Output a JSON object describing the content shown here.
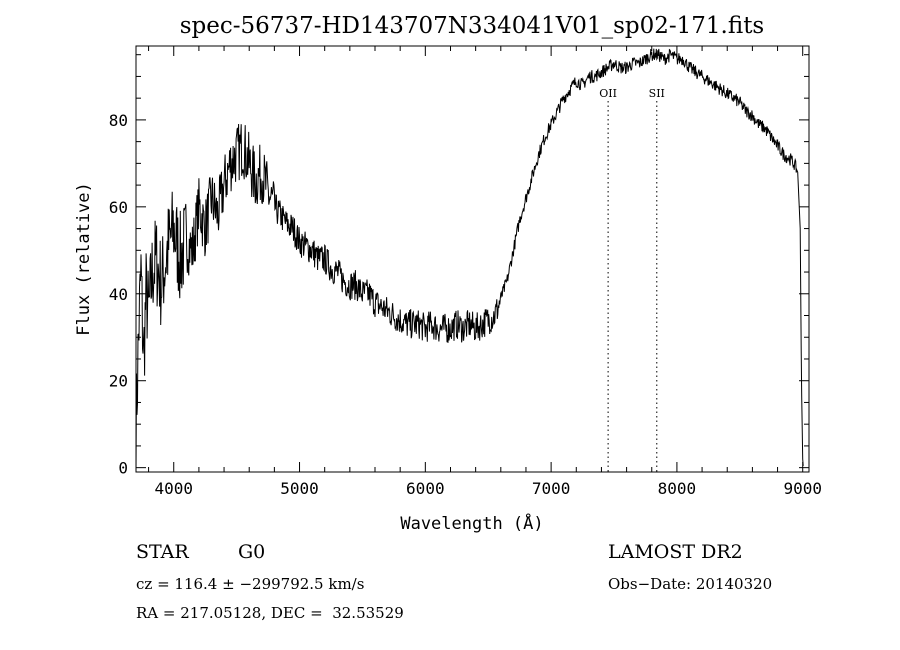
{
  "chart_data": {
    "type": "line",
    "title": "spec-56737-HD143707N334041V01_sp02-171.fits",
    "xlabel": "Wavelength (Å)",
    "ylabel": "Flux (relative)",
    "xlim": [
      3700,
      9050
    ],
    "ylim": [
      -1,
      97
    ],
    "xticks": [
      4000,
      5000,
      6000,
      7000,
      8000,
      9000
    ],
    "yticks": [
      0,
      20,
      40,
      60,
      80
    ],
    "grid": false,
    "series": [
      {
        "x": [
          3700,
          3720,
          3740,
          3760,
          3780,
          3800,
          3830,
          3860,
          3900,
          3950,
          4000,
          4050,
          4100,
          4150,
          4200,
          4250,
          4300,
          4350,
          4400,
          4450,
          4500,
          4550,
          4600,
          4650,
          4700,
          4750,
          4800,
          4850,
          4900,
          4950,
          5000,
          5050,
          5100,
          5150,
          5200,
          5250,
          5300,
          5350,
          5400,
          5450,
          5500,
          5550,
          5600,
          5650,
          5700,
          5750,
          5800,
          5850,
          5900,
          5950,
          6000,
          6050,
          6100,
          6150,
          6200,
          6250,
          6300,
          6350,
          6400,
          6450,
          6500,
          6550,
          6580,
          6600,
          6650,
          6700,
          6750,
          6800,
          6850,
          6900,
          6950,
          7000,
          7050,
          7100,
          7150,
          7200,
          7250,
          7300,
          7350,
          7400,
          7450,
          7500,
          7550,
          7600,
          7650,
          7700,
          7750,
          7800,
          7850,
          7900,
          7950,
          8000,
          8050,
          8100,
          8150,
          8200,
          8250,
          8300,
          8350,
          8400,
          8450,
          8500,
          8550,
          8600,
          8650,
          8700,
          8750,
          8800,
          8850,
          8900,
          8930,
          8960,
          8980,
          8990,
          9000,
          9005
        ],
        "y": [
          8,
          30,
          45,
          25,
          40,
          35,
          45,
          48,
          42,
          50,
          55,
          48,
          52,
          50,
          60,
          55,
          62,
          58,
          65,
          70,
          72,
          74,
          70,
          66,
          68,
          63,
          60,
          58,
          56,
          55,
          52,
          51,
          50,
          48,
          48,
          46,
          45,
          43,
          42,
          42,
          40,
          40,
          38,
          37,
          36,
          35,
          34,
          33,
          33,
          33,
          32,
          33,
          32,
          32,
          32,
          33,
          32,
          33,
          32,
          33,
          34,
          35,
          37,
          39,
          43,
          50,
          57,
          62,
          67,
          72,
          76,
          79,
          82,
          85,
          87,
          89,
          88,
          90,
          90,
          91,
          92,
          93,
          92,
          92,
          93,
          93,
          94,
          95,
          95,
          94,
          95,
          94,
          94,
          92,
          91,
          90,
          89,
          88,
          87,
          86,
          85,
          84,
          82,
          81,
          79,
          78,
          76,
          74,
          72,
          71,
          70,
          68,
          55,
          20,
          2,
          0
        ]
      }
    ],
    "annotations": [
      {
        "label": "OII",
        "x": 7453
      },
      {
        "label": "SII",
        "x": 7840
      }
    ]
  },
  "info": {
    "class": "STAR",
    "subclass": "G0",
    "cz": "cz = 116.4 ± −299792.5 km/s",
    "radec": "RA = 217.05128, DEC =  32.53529",
    "survey": "LAMOST DR2",
    "obsdate": "Obs−Date: 20140320"
  }
}
